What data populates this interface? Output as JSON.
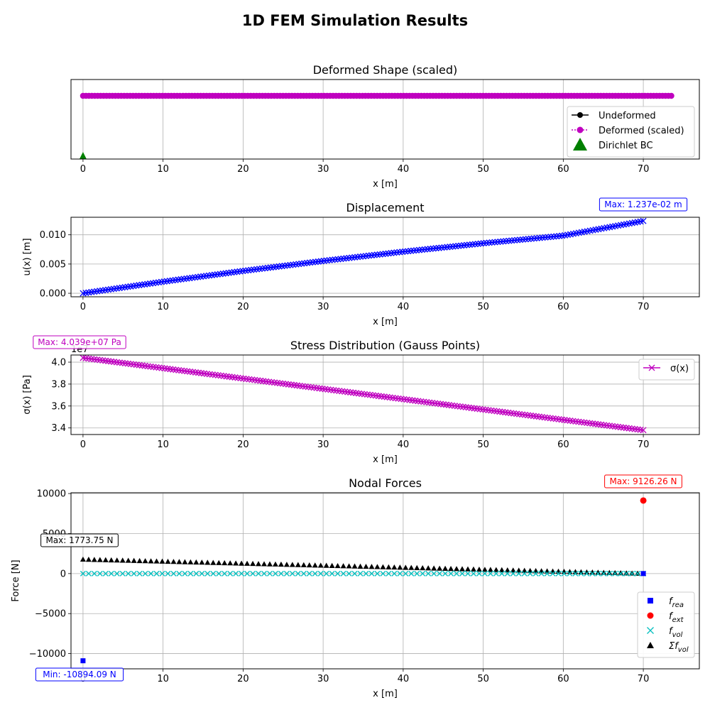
{
  "title": "1D FEM Simulation Results",
  "colors": {
    "undeformed": "#000000",
    "deformed": "#bf00bf",
    "dirichlet": "#008000",
    "displacement": "#0000ff",
    "stress": "#bf00bf",
    "f_rea": "#0000ff",
    "f_ext": "#ff0000",
    "f_vol": "#00bfbf",
    "sum_f_vol": "#000000",
    "grid": "#b0b0b0"
  },
  "chart_data": [
    {
      "type": "line",
      "title": "Deformed Shape (scaled)",
      "xlabel": "x [m]",
      "ylabel": "",
      "xlim": [
        -1.5,
        77
      ],
      "xticks": [
        0,
        10,
        20,
        30,
        40,
        50,
        60,
        70
      ],
      "grid": true,
      "legend_position": "lower-right",
      "series": [
        {
          "name": "Undeformed",
          "x_start": 0,
          "x_end": 70,
          "points": 201
        },
        {
          "name": "Deformed (scaled)",
          "x_start": 0,
          "x_end": 73.5,
          "points": 201
        },
        {
          "name": "Dirichlet BC",
          "x": [
            0
          ]
        }
      ]
    },
    {
      "type": "line",
      "title": "Displacement",
      "xlabel": "x [m]",
      "ylabel": "u(x) [m]",
      "xlim": [
        -1.5,
        77
      ],
      "ylim": [
        -0.0006,
        0.013
      ],
      "xticks": [
        0,
        10,
        20,
        30,
        40,
        50,
        60,
        70
      ],
      "yticks": [
        0.0,
        0.005,
        0.01
      ],
      "ytick_labels": [
        "0.000",
        "0.005",
        "0.010"
      ],
      "grid": true,
      "annotation": "Max: 1.237e-02 m",
      "series": [
        {
          "name": "u(x)",
          "x": [
            0,
            10,
            20,
            30,
            40,
            50,
            60,
            70
          ],
          "y": [
            0.0,
            0.00198,
            0.00382,
            0.00553,
            0.00711,
            0.00855,
            0.00986,
            0.01237
          ],
          "points": 201
        }
      ]
    },
    {
      "type": "line",
      "title": "Stress Distribution (Gauss Points)",
      "xlabel": "x [m]",
      "ylabel": "σ(x) [Pa]",
      "offset_label": "1e7",
      "xlim": [
        -1.5,
        77
      ],
      "ylim": [
        3.34,
        4.065
      ],
      "xticks": [
        0,
        10,
        20,
        30,
        40,
        50,
        60,
        70
      ],
      "yticks": [
        3.4,
        3.6,
        3.8,
        4.0
      ],
      "ytick_labels": [
        "3.4",
        "3.6",
        "3.8",
        "4.0"
      ],
      "grid": true,
      "legend_position": "top-right",
      "annotation": "Max: 4.039e+07 Pa",
      "series": [
        {
          "name": "σ(x)",
          "x_start": 0,
          "x_end": 70,
          "y_start": 40390000,
          "y_end": 33800000,
          "points": 200
        }
      ]
    },
    {
      "type": "scatter",
      "title": "Nodal Forces",
      "xlabel": "x [m]",
      "ylabel": "Force [N]",
      "xlim": [
        -1.5,
        77
      ],
      "ylim": [
        -11900,
        10100
      ],
      "xticks": [
        0,
        10,
        20,
        30,
        40,
        50,
        60,
        70
      ],
      "yticks": [
        -10000,
        -5000,
        0,
        5000,
        10000
      ],
      "ytick_labels": [
        "−10000",
        "−5000",
        "0",
        "5000",
        "10000"
      ],
      "grid": true,
      "legend_position": "lower-right",
      "annotations": {
        "max_ext": "Max: 9126.26 N",
        "max_vol": "Max: 1773.75 N",
        "min_rea": "Min: -10894.09 N"
      },
      "series": [
        {
          "name": "f_rea",
          "legend_base": "f",
          "legend_sub": "rea",
          "x": [
            0,
            70
          ],
          "y": [
            -10894.09,
            0
          ]
        },
        {
          "name": "f_ext",
          "legend_base": "f",
          "legend_sub": "ext",
          "x": [
            70
          ],
          "y": [
            9126.26
          ]
        },
        {
          "name": "f_vol",
          "legend_base": "f",
          "legend_sub": "vol",
          "x_start": 0,
          "x_end": 70,
          "y_start": 0,
          "y_end": 0,
          "points": 100
        },
        {
          "name": "Σf_vol",
          "legend_base": "Σf",
          "legend_sub": "vol",
          "x_start": 0,
          "x_end": 70,
          "y_start": 1773.75,
          "y_end": 0,
          "points": 100
        }
      ]
    }
  ]
}
